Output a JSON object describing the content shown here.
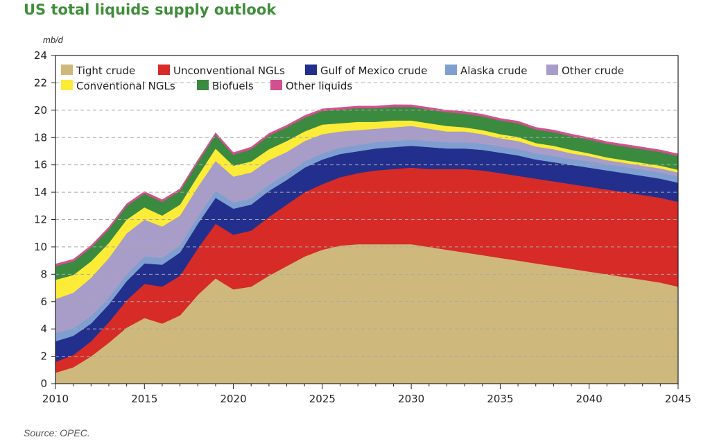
{
  "header": {
    "title": "US total liquids supply outlook",
    "unit": "mb/d",
    "source": "Source: OPEC."
  },
  "chart_data": {
    "type": "area",
    "stacked": true,
    "title": "US total liquids supply outlook",
    "ylabel": "mb/d",
    "xlabel": "",
    "xlim": [
      2010,
      2045
    ],
    "ylim": [
      0,
      24
    ],
    "x_ticks": [
      2010,
      2015,
      2020,
      2025,
      2030,
      2035,
      2040,
      2045
    ],
    "y_ticks": [
      0,
      2,
      4,
      6,
      8,
      10,
      12,
      14,
      16,
      18,
      20,
      22,
      24
    ],
    "grid": "horizontal dashed",
    "legend_position": "top",
    "x": [
      2010,
      2011,
      2012,
      2013,
      2014,
      2015,
      2016,
      2017,
      2018,
      2019,
      2020,
      2021,
      2022,
      2023,
      2024,
      2025,
      2026,
      2027,
      2028,
      2029,
      2030,
      2031,
      2032,
      2033,
      2034,
      2035,
      2036,
      2037,
      2038,
      2039,
      2040,
      2041,
      2042,
      2043,
      2044,
      2045
    ],
    "series": [
      {
        "name": "Tight crude",
        "color": "#cfb87c",
        "values": [
          0.8,
          1.2,
          2.0,
          3.0,
          4.1,
          4.8,
          4.4,
          5.0,
          6.5,
          7.7,
          6.9,
          7.1,
          7.9,
          8.6,
          9.3,
          9.8,
          10.1,
          10.2,
          10.2,
          10.2,
          10.2,
          10.0,
          9.8,
          9.6,
          9.4,
          9.2,
          9.0,
          8.8,
          8.6,
          8.4,
          8.2,
          8.0,
          7.8,
          7.6,
          7.4,
          7.1
        ]
      },
      {
        "name": "Unconventional NGLs",
        "color": "#d62b27",
        "values": [
          0.8,
          0.9,
          1.1,
          1.5,
          2.0,
          2.5,
          2.7,
          2.9,
          3.4,
          4.0,
          4.0,
          4.1,
          4.3,
          4.5,
          4.7,
          4.8,
          5.0,
          5.2,
          5.4,
          5.5,
          5.6,
          5.7,
          5.9,
          6.1,
          6.2,
          6.2,
          6.2,
          6.2,
          6.2,
          6.2,
          6.2,
          6.2,
          6.2,
          6.2,
          6.2,
          6.2
        ]
      },
      {
        "name": "Gulf of Mexico crude",
        "color": "#232f8c",
        "values": [
          1.5,
          1.4,
          1.3,
          1.3,
          1.4,
          1.5,
          1.6,
          1.7,
          1.8,
          1.9,
          1.9,
          1.9,
          1.9,
          1.8,
          1.8,
          1.8,
          1.7,
          1.6,
          1.6,
          1.6,
          1.6,
          1.6,
          1.5,
          1.5,
          1.5,
          1.5,
          1.5,
          1.4,
          1.4,
          1.4,
          1.4,
          1.4,
          1.4,
          1.4,
          1.4,
          1.4
        ]
      },
      {
        "name": "Alaska crude",
        "color": "#7f9fd1",
        "values": [
          0.6,
          0.55,
          0.55,
          0.5,
          0.5,
          0.5,
          0.5,
          0.5,
          0.5,
          0.5,
          0.45,
          0.45,
          0.45,
          0.45,
          0.45,
          0.45,
          0.45,
          0.45,
          0.45,
          0.45,
          0.45,
          0.45,
          0.45,
          0.45,
          0.45,
          0.45,
          0.45,
          0.45,
          0.45,
          0.45,
          0.45,
          0.45,
          0.45,
          0.45,
          0.45,
          0.45
        ]
      },
      {
        "name": "Other crude",
        "color": "#a89cc8",
        "values": [
          2.5,
          2.6,
          2.8,
          2.9,
          3.0,
          2.7,
          2.3,
          2.2,
          2.2,
          2.2,
          1.9,
          1.9,
          1.8,
          1.6,
          1.5,
          1.4,
          1.2,
          1.1,
          1.0,
          1.0,
          1.0,
          0.9,
          0.8,
          0.8,
          0.7,
          0.6,
          0.6,
          0.5,
          0.5,
          0.4,
          0.4,
          0.3,
          0.3,
          0.3,
          0.3,
          0.3
        ]
      },
      {
        "name": "Conventional NGLs",
        "color": "#fdec37",
        "values": [
          1.4,
          1.3,
          1.2,
          1.1,
          1.0,
          0.9,
          0.8,
          0.8,
          0.8,
          0.9,
          0.8,
          0.8,
          0.8,
          0.8,
          0.7,
          0.7,
          0.6,
          0.6,
          0.5,
          0.5,
          0.4,
          0.4,
          0.4,
          0.3,
          0.3,
          0.3,
          0.3,
          0.25,
          0.25,
          0.25,
          0.2,
          0.2,
          0.2,
          0.2,
          0.2,
          0.2
        ]
      },
      {
        "name": "Biofuels",
        "color": "#3a8b3f",
        "values": [
          1.0,
          1.0,
          1.0,
          1.0,
          1.0,
          1.0,
          1.0,
          1.0,
          1.0,
          1.0,
          0.8,
          0.9,
          1.0,
          1.0,
          1.0,
          1.0,
          1.0,
          1.0,
          1.0,
          1.0,
          1.0,
          1.0,
          1.0,
          1.0,
          1.0,
          1.0,
          1.0,
          1.0,
          1.0,
          1.0,
          1.0,
          1.0,
          1.0,
          1.0,
          1.0,
          1.0
        ]
      },
      {
        "name": "Other liquids",
        "color": "#d2508d",
        "values": [
          0.15,
          0.15,
          0.15,
          0.15,
          0.15,
          0.15,
          0.15,
          0.15,
          0.15,
          0.15,
          0.15,
          0.15,
          0.15,
          0.15,
          0.15,
          0.15,
          0.15,
          0.15,
          0.15,
          0.15,
          0.15,
          0.15,
          0.15,
          0.15,
          0.15,
          0.15,
          0.15,
          0.15,
          0.15,
          0.15,
          0.15,
          0.15,
          0.15,
          0.15,
          0.15,
          0.15
        ]
      }
    ]
  }
}
